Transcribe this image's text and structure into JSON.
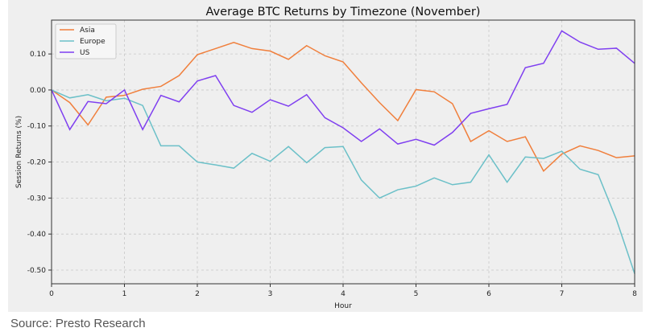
{
  "chart_data": {
    "type": "line",
    "title": "Average BTC Returns by Timezone (November)",
    "xlabel": "Hour",
    "ylabel": "Session Returns (%)",
    "xlim": [
      0,
      8
    ],
    "ylim": [
      -0.538,
      0.194
    ],
    "xticks": [
      0,
      1,
      2,
      3,
      4,
      5,
      6,
      7,
      8
    ],
    "yticks": [
      0.1,
      0.0,
      -0.1,
      -0.2,
      -0.3,
      -0.4,
      -0.5
    ],
    "ytick_labels": [
      "0.10",
      "0.00",
      "-0.10",
      "-0.20",
      "-0.30",
      "-0.40",
      "-0.50"
    ],
    "grid": true,
    "legend_position": "top-left",
    "x": [
      0,
      0.25,
      0.5,
      0.75,
      1,
      1.25,
      1.5,
      1.75,
      2,
      2.25,
      2.5,
      2.75,
      3,
      3.25,
      3.5,
      3.75,
      4,
      4.25,
      4.5,
      4.75,
      5,
      5.25,
      5.5,
      5.75,
      6,
      6.25,
      6.5,
      6.75,
      7,
      7.25,
      7.5,
      7.75,
      8
    ],
    "series": [
      {
        "name": "Asia",
        "color": "#f07f3c",
        "values": [
          0,
          -0.035,
          -0.097,
          -0.02,
          -0.015,
          0.002,
          0.01,
          0.04,
          0.098,
          0.115,
          0.132,
          0.115,
          0.108,
          0.085,
          0.123,
          0.095,
          0.078,
          0.02,
          -0.035,
          -0.085,
          0.001,
          -0.005,
          -0.038,
          -0.143,
          -0.113,
          -0.143,
          -0.13,
          -0.225,
          -0.178,
          -0.155,
          -0.168,
          -0.188,
          -0.183
        ]
      },
      {
        "name": "Europe",
        "color": "#6bc0c8",
        "values": [
          0,
          -0.022,
          -0.013,
          -0.03,
          -0.023,
          -0.043,
          -0.155,
          -0.155,
          -0.2,
          -0.208,
          -0.217,
          -0.176,
          -0.198,
          -0.157,
          -0.202,
          -0.16,
          -0.157,
          -0.25,
          -0.3,
          -0.277,
          -0.267,
          -0.244,
          -0.263,
          -0.256,
          -0.18,
          -0.256,
          -0.186,
          -0.19,
          -0.17,
          -0.22,
          -0.235,
          -0.36,
          -0.51
        ]
      },
      {
        "name": "US",
        "color": "#7f3ff0",
        "values": [
          0,
          -0.11,
          -0.032,
          -0.038,
          0,
          -0.11,
          -0.015,
          -0.033,
          0.025,
          0.04,
          -0.043,
          -0.062,
          -0.027,
          -0.045,
          -0.013,
          -0.077,
          -0.105,
          -0.143,
          -0.108,
          -0.15,
          -0.137,
          -0.153,
          -0.118,
          -0.065,
          -0.052,
          -0.04,
          0.062,
          0.074,
          0.164,
          0.133,
          0.113,
          0.116,
          0.074
        ]
      }
    ]
  },
  "source": "Source: Presto Research"
}
